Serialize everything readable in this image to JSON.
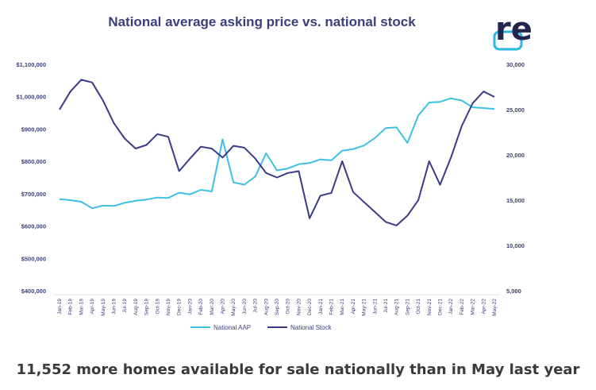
{
  "header": {
    "title": "National average asking price vs. national stock",
    "logo_text": "re",
    "logo_color": "#2ab7e0"
  },
  "caption": "11,552 more homes available for sale nationally than in May last year",
  "chart_data": {
    "type": "line",
    "title": "National average asking price vs. national stock",
    "categories": [
      "Jan-19",
      "Feb-19",
      "Mar-19",
      "Apr-19",
      "May-19",
      "Jun-19",
      "Jul-19",
      "Aug-19",
      "Sep-19",
      "Oct-19",
      "Nov-19",
      "Dec-19",
      "Jan-20",
      "Feb-20",
      "Mar-20",
      "Apr-20",
      "May-20",
      "Jun-20",
      "Jul-20",
      "Aug-20",
      "Sep-20",
      "Oct-20",
      "Nov-20",
      "Dec-20",
      "Jan-21",
      "Feb-21",
      "Mar-21",
      "Apr-21",
      "May-21",
      "Jun-21",
      "Jul-21",
      "Aug-21",
      "Sep-21",
      "Oct-21",
      "Nov-21",
      "Dec-21",
      "Jan-22",
      "Feb-22",
      "Mar-22",
      "Apr-22",
      "May-22"
    ],
    "y_left": {
      "ticks": [
        "$400,000",
        "$500,000",
        "$600,000",
        "$700,000",
        "$800,000",
        "$900,000",
        "$1,000,000",
        "$1,100,000"
      ],
      "ylim": [
        400000,
        1100000
      ]
    },
    "y_right": {
      "ticks": [
        "5,000",
        "10,000",
        "15,000",
        "20,000",
        "25,000",
        "30,000"
      ],
      "ylim": [
        5000,
        30000
      ]
    },
    "series": [
      {
        "name": "National AAP",
        "axis": "left",
        "color": "#3cc0e3",
        "values": [
          683000,
          680000,
          675000,
          655000,
          663000,
          662000,
          672000,
          678000,
          682000,
          688000,
          687000,
          703000,
          698000,
          712000,
          707000,
          868000,
          735000,
          728000,
          753000,
          825000,
          772000,
          778000,
          791000,
          795000,
          806000,
          803000,
          833000,
          838000,
          849000,
          872000,
          903000,
          905000,
          857000,
          942000,
          982000,
          984000,
          995000,
          988000,
          967000,
          965000,
          962000
        ]
      },
      {
        "name": "National Stock",
        "axis": "right",
        "color": "#3b3a8a",
        "values": [
          25000,
          27000,
          28300,
          28000,
          26000,
          23500,
          21800,
          20700,
          21100,
          22300,
          22000,
          18200,
          19600,
          20900,
          20700,
          19700,
          21000,
          20800,
          19600,
          18000,
          17500,
          18000,
          18200,
          13000,
          15500,
          15800,
          19300,
          15900,
          14800,
          13700,
          12600,
          12200,
          13300,
          15000,
          19300,
          16700,
          19700,
          23200,
          25700,
          27000,
          26400
        ]
      }
    ],
    "legend_position": "bottom",
    "grid": false
  }
}
